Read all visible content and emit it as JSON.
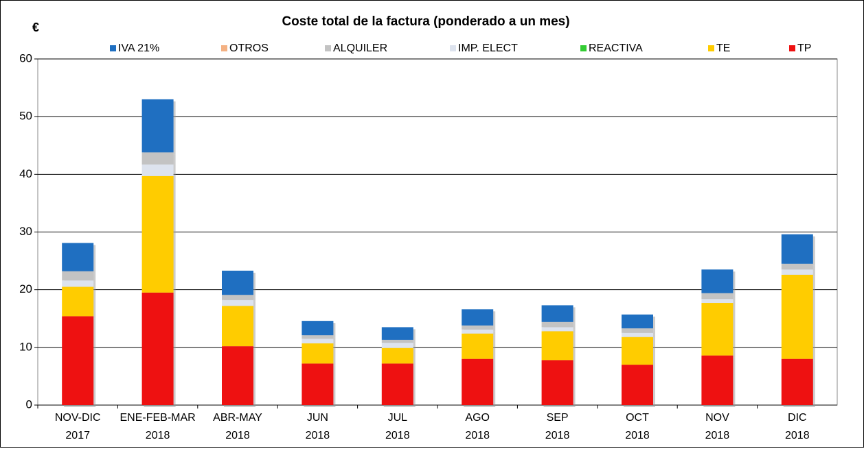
{
  "chart_data": {
    "type": "stacked_bar",
    "title": "Coste total de la factura (ponderado a un mes)",
    "y_label": "€",
    "categories": [
      [
        "NOV-DIC",
        "2017"
      ],
      [
        "ENE-FEB-MAR",
        "2018"
      ],
      [
        "ABR-MAY",
        "2018"
      ],
      [
        "JUN",
        "2018"
      ],
      [
        "JUL",
        "2018"
      ],
      [
        "AGO",
        "2018"
      ],
      [
        "SEP",
        "2018"
      ],
      [
        "OCT",
        "2018"
      ],
      [
        "NOV",
        "2018"
      ],
      [
        "DIC",
        "2018"
      ]
    ],
    "series": [
      {
        "name": "IVA 21%",
        "color": "#1f6fc1",
        "values": [
          4.9,
          9.2,
          4.2,
          2.5,
          2.2,
          2.8,
          2.9,
          2.4,
          4.1,
          5.1
        ]
      },
      {
        "name": "OTROS",
        "color": "#f4b183",
        "values": [
          0,
          0,
          0,
          0,
          0,
          0,
          0,
          0,
          0,
          0
        ]
      },
      {
        "name": "ALQUILER",
        "color": "#c3c3c3",
        "values": [
          1.6,
          2.1,
          0.9,
          0.6,
          0.5,
          0.7,
          0.9,
          0.8,
          1.0,
          1.0
        ]
      },
      {
        "name": "IMP. ELECT",
        "color": "#dde3ee",
        "values": [
          1.1,
          2.0,
          1.0,
          0.8,
          0.9,
          0.7,
          0.7,
          0.7,
          0.7,
          0.9
        ]
      },
      {
        "name": "REACTIVA",
        "color": "#33cc33",
        "values": [
          0,
          0,
          0,
          0,
          0,
          0,
          0,
          0,
          0,
          0
        ]
      },
      {
        "name": "TE",
        "color": "#ffcc00",
        "values": [
          5.1,
          20.2,
          7.0,
          3.5,
          2.7,
          4.4,
          5.0,
          4.8,
          9.1,
          14.6
        ]
      },
      {
        "name": "TP",
        "color": "#ee1111",
        "values": [
          15.4,
          19.5,
          10.2,
          7.2,
          7.2,
          8.0,
          7.8,
          7.0,
          8.6,
          8.0
        ]
      }
    ],
    "ylim": [
      0,
      60
    ],
    "yticks": [
      0,
      10,
      20,
      30,
      40,
      50,
      60
    ],
    "grid": true,
    "legend": "top"
  }
}
